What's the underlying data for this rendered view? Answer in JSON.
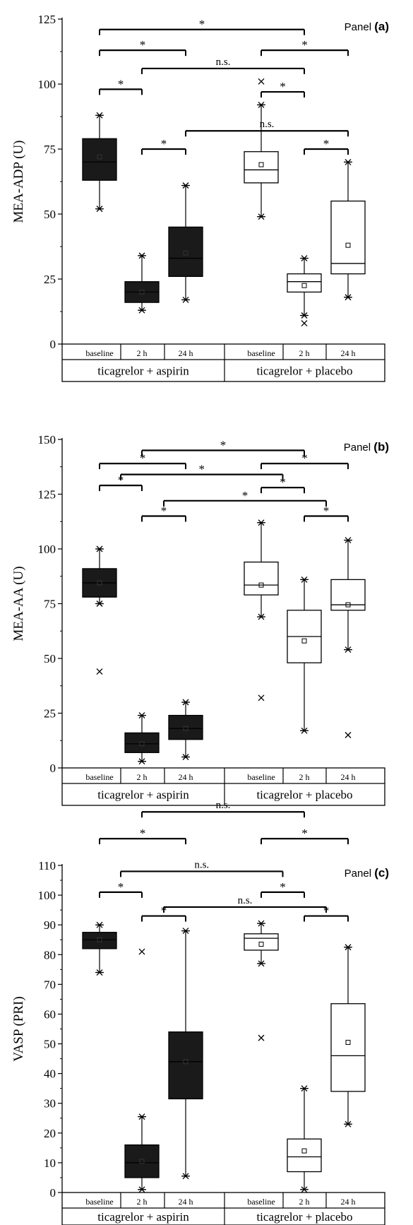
{
  "chart_data": [
    {
      "type": "box",
      "panel_label": "Panel",
      "panel_letter": "(a)",
      "ylabel": "MEA-ADP (U)",
      "ylim": [
        0,
        125
      ],
      "yticks": [
        0,
        25,
        50,
        75,
        100,
        125
      ],
      "groups": [
        {
          "label": "ticagrelor + aspirin",
          "fill": "#1a1a1a"
        },
        {
          "label": "ticagrelor + placebo",
          "fill": "#ffffff"
        }
      ],
      "categories": [
        "baseline",
        "2 h",
        "24 h",
        "baseline",
        "2 h",
        "24 h"
      ],
      "boxes": [
        {
          "q1": 63,
          "median": 70,
          "q3": 79,
          "whisker_low": 52,
          "whisker_high": 88,
          "mean": 72,
          "outliers": []
        },
        {
          "q1": 16,
          "median": 20,
          "q3": 24,
          "whisker_low": 13,
          "whisker_high": 34,
          "mean": 20,
          "outliers": []
        },
        {
          "q1": 26,
          "median": 33,
          "q3": 45,
          "whisker_low": 17,
          "whisker_high": 61,
          "mean": 35,
          "outliers": []
        },
        {
          "q1": 62,
          "median": 67,
          "q3": 74,
          "whisker_low": 49,
          "whisker_high": 92,
          "mean": 69,
          "outliers": [
            101
          ]
        },
        {
          "q1": 20,
          "median": 24,
          "q3": 27,
          "whisker_low": 11,
          "whisker_high": 33,
          "mean": 22.5,
          "outliers": [
            8
          ]
        },
        {
          "q1": 27,
          "median": 31,
          "q3": 55,
          "whisker_low": 18,
          "whisker_high": 70,
          "mean": 38,
          "outliers": []
        }
      ],
      "brackets": [
        {
          "from": 0,
          "to": 4,
          "y": 121,
          "label": "*"
        },
        {
          "from": 0,
          "to": 2,
          "y": 113,
          "label": "*"
        },
        {
          "from": 3,
          "to": 5,
          "y": 113,
          "label": "*"
        },
        {
          "from": 1,
          "to": 4,
          "y": 106,
          "label": "n.s."
        },
        {
          "from": 0,
          "to": 1,
          "y": 98,
          "label": "*"
        },
        {
          "from": 3,
          "to": 4,
          "y": 97,
          "label": "*"
        },
        {
          "from": 2,
          "to": 5,
          "y": 82,
          "label": "n.s."
        },
        {
          "from": 1,
          "to": 2,
          "y": 75,
          "label": "*"
        },
        {
          "from": 4,
          "to": 5,
          "y": 75,
          "label": "*"
        }
      ]
    },
    {
      "type": "box",
      "panel_label": "Panel",
      "panel_letter": "(b)",
      "ylabel": "MEA-AA (U)",
      "ylim": [
        0,
        150
      ],
      "yticks": [
        0,
        25,
        50,
        75,
        100,
        125,
        150
      ],
      "groups": [
        {
          "label": "ticagrelor + aspirin",
          "fill": "#1a1a1a"
        },
        {
          "label": "ticagrelor + placebo",
          "fill": "#ffffff"
        }
      ],
      "categories": [
        "baseline",
        "2 h",
        "24 h",
        "baseline",
        "2 h",
        "24 h"
      ],
      "boxes": [
        {
          "q1": 78,
          "median": 84.5,
          "q3": 91,
          "whisker_low": 75,
          "whisker_high": 100,
          "mean": 84.5,
          "outliers": [
            44
          ]
        },
        {
          "q1": 7,
          "median": 11,
          "q3": 16,
          "whisker_low": 3,
          "whisker_high": 24,
          "mean": 11,
          "outliers": []
        },
        {
          "q1": 13,
          "median": 18,
          "q3": 24,
          "whisker_low": 5,
          "whisker_high": 30,
          "mean": 18,
          "outliers": []
        },
        {
          "q1": 79,
          "median": 83.5,
          "q3": 94,
          "whisker_low": 69,
          "whisker_high": 112,
          "mean": 83.5,
          "outliers": [
            32
          ]
        },
        {
          "q1": 48,
          "median": 60,
          "q3": 72,
          "whisker_low": 17,
          "whisker_high": 86,
          "mean": 58,
          "outliers": []
        },
        {
          "q1": 72,
          "median": 74.5,
          "q3": 86,
          "whisker_low": 54,
          "whisker_high": 104,
          "mean": 74.5,
          "outliers": [
            15
          ]
        }
      ],
      "brackets": [
        {
          "from": 1,
          "to": 4,
          "y": 145,
          "label": "*"
        },
        {
          "from": 0,
          "to": 2,
          "y": 139,
          "label": "*"
        },
        {
          "from": 3,
          "to": 5,
          "y": 139,
          "label": "*"
        },
        {
          "from": 0.5,
          "to": 3.5,
          "y": 134,
          "label": "*"
        },
        {
          "from": 0,
          "to": 1,
          "y": 129,
          "label": "*"
        },
        {
          "from": 3,
          "to": 4,
          "y": 128,
          "label": "*"
        },
        {
          "from": 1.5,
          "to": 4.5,
          "y": 122,
          "label": "*"
        },
        {
          "from": 1,
          "to": 2,
          "y": 115,
          "label": "*"
        },
        {
          "from": 4,
          "to": 5,
          "y": 115,
          "label": "*"
        }
      ]
    },
    {
      "type": "box",
      "panel_label": "Panel",
      "panel_letter": "(c)",
      "ylabel": "VASP (PRI)",
      "ylim": [
        0,
        110
      ],
      "yticks": [
        0,
        10,
        20,
        30,
        40,
        50,
        60,
        70,
        80,
        90,
        100,
        110
      ],
      "groups": [
        {
          "label": "ticagrelor + aspirin",
          "fill": "#1a1a1a"
        },
        {
          "label": "ticagrelor + placebo",
          "fill": "#ffffff"
        }
      ],
      "categories": [
        "baseline",
        "2 h",
        "24 h",
        "baseline",
        "2 h",
        "24 h"
      ],
      "boxes": [
        {
          "q1": 82,
          "median": 85,
          "q3": 87.5,
          "whisker_low": 74,
          "whisker_high": 90,
          "mean": 85,
          "outliers": []
        },
        {
          "q1": 5,
          "median": 10,
          "q3": 16,
          "whisker_low": 1,
          "whisker_high": 25.5,
          "mean": 10.5,
          "outliers": [
            81
          ]
        },
        {
          "q1": 31.5,
          "median": 44,
          "q3": 54,
          "whisker_low": 5.5,
          "whisker_high": 88,
          "mean": 44,
          "outliers": []
        },
        {
          "q1": 81.5,
          "median": 85.5,
          "q3": 87,
          "whisker_low": 77,
          "whisker_high": 90.5,
          "mean": 83.5,
          "outliers": [
            52
          ]
        },
        {
          "q1": 7,
          "median": 12,
          "q3": 18,
          "whisker_low": 1,
          "whisker_high": 35,
          "mean": 14,
          "outliers": []
        },
        {
          "q1": 34,
          "median": 46,
          "q3": 63.5,
          "whisker_low": 23,
          "whisker_high": 82.5,
          "mean": 50.5,
          "outliers": []
        }
      ],
      "brackets": [
        {
          "from": 1,
          "to": 4,
          "y": 128,
          "label": "n.s."
        },
        {
          "from": 0,
          "to": 2,
          "y": 119,
          "label": "*"
        },
        {
          "from": 3,
          "to": 5,
          "y": 119,
          "label": "*"
        },
        {
          "from": 0.5,
          "to": 3.5,
          "y": 108,
          "label": "n.s."
        },
        {
          "from": 0,
          "to": 1,
          "y": 101,
          "label": "*"
        },
        {
          "from": 3,
          "to": 4,
          "y": 101,
          "label": "*"
        },
        {
          "from": 1.5,
          "to": 4.5,
          "y": 96,
          "label": "n.s."
        },
        {
          "from": 1,
          "to": 2,
          "y": 93,
          "label": "*"
        },
        {
          "from": 4,
          "to": 5,
          "y": 93,
          "label": "*"
        }
      ]
    }
  ]
}
